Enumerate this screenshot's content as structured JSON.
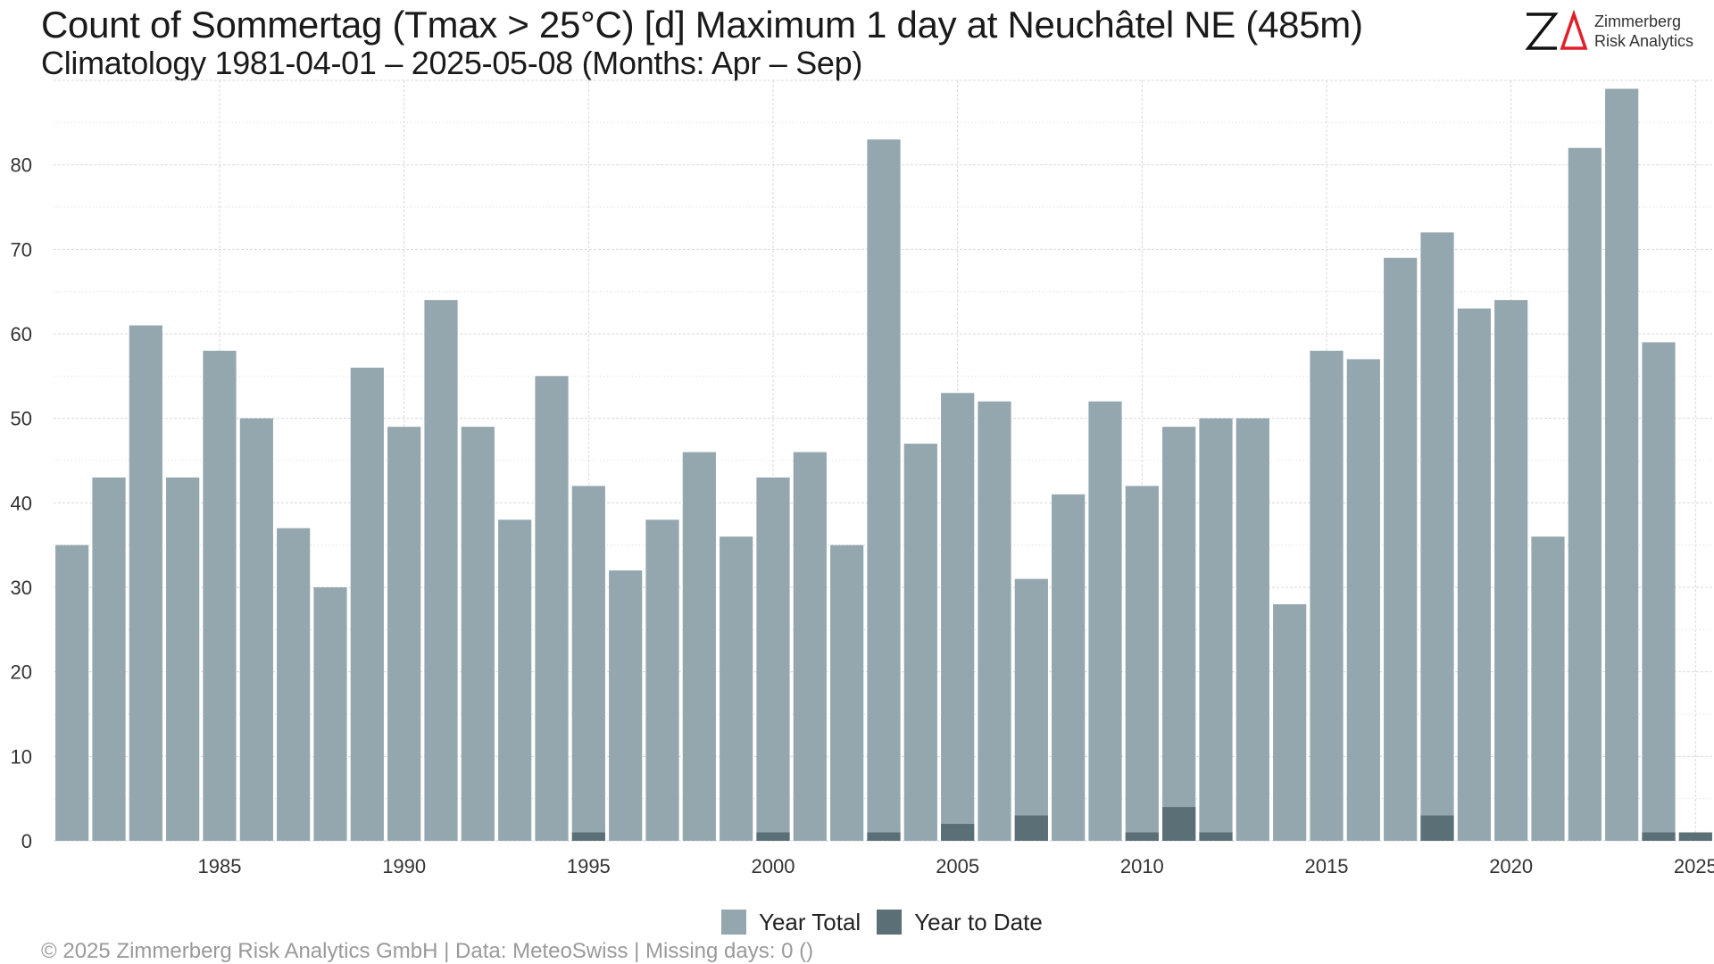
{
  "header": {
    "title": "Count of Sommertag (Tmax > 25°C) [d] Maximum 1 day at Neuchâtel  NE (485m)",
    "subtitle": "Climatology 1981-04-01 – 2025-05-08 (Months: Apr – Sep)"
  },
  "logo": {
    "line1": "Zimmerberg",
    "line2": "Risk Analytics",
    "accent": "#e0202b"
  },
  "footer": "©  2025 Zimmerberg Risk Analytics GmbH | Data: MeteoSwiss | Missing days: 0 ()",
  "colors": {
    "year_total": "#94a7ae",
    "year_to_date": "#5b6f76",
    "grid": "#d9d9d9"
  },
  "chart_data": {
    "type": "bar",
    "x": [
      1981,
      1982,
      1983,
      1984,
      1985,
      1986,
      1987,
      1988,
      1989,
      1990,
      1991,
      1992,
      1993,
      1994,
      1995,
      1996,
      1997,
      1998,
      1999,
      2000,
      2001,
      2002,
      2003,
      2004,
      2005,
      2006,
      2007,
      2008,
      2009,
      2010,
      2011,
      2012,
      2013,
      2014,
      2015,
      2016,
      2017,
      2018,
      2019,
      2020,
      2021,
      2022,
      2023,
      2024,
      2025
    ],
    "series": [
      {
        "name": "Year Total",
        "values": [
          35,
          43,
          61,
          43,
          58,
          50,
          37,
          30,
          56,
          49,
          64,
          49,
          38,
          55,
          42,
          32,
          38,
          46,
          36,
          43,
          46,
          35,
          83,
          47,
          53,
          52,
          31,
          41,
          52,
          42,
          49,
          50,
          50,
          28,
          58,
          57,
          69,
          72,
          63,
          64,
          36,
          82,
          89,
          59,
          null
        ]
      },
      {
        "name": "Year to Date",
        "values": [
          0,
          0,
          0,
          0,
          0,
          0,
          0,
          0,
          0,
          0,
          0,
          0,
          0,
          0,
          1,
          0,
          0,
          0,
          0,
          1,
          0,
          0,
          1,
          0,
          2,
          0,
          3,
          0,
          0,
          1,
          4,
          1,
          0,
          0,
          0,
          0,
          0,
          3,
          0,
          0,
          0,
          0,
          0,
          1,
          1
        ]
      }
    ],
    "xticks": [
      1985,
      1990,
      1995,
      2000,
      2005,
      2010,
      2015,
      2020,
      2025
    ],
    "yticks": [
      0,
      10,
      20,
      30,
      40,
      50,
      60,
      70,
      80
    ],
    "ylim": [
      0,
      90
    ],
    "grid": true,
    "legend_position": "bottom"
  }
}
